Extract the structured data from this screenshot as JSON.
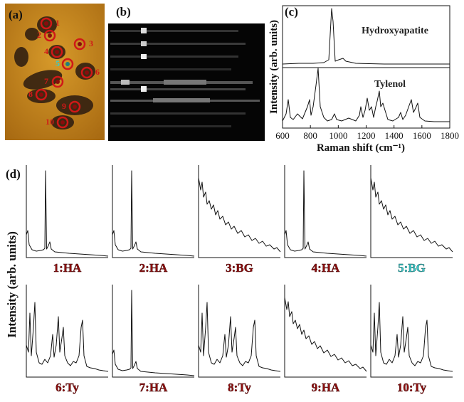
{
  "panel_a": {
    "label": "(a)",
    "markers": [
      "1",
      "2",
      "3",
      "4",
      "5",
      "6",
      "7",
      "8",
      "9",
      "10"
    ]
  },
  "panel_b": {
    "label": "(b)"
  },
  "panel_c": {
    "label": "(c)",
    "y_label": "Intensity (arb. units)",
    "x_label": "Raman shift (cm⁻¹)",
    "xlim": [
      600,
      1800
    ],
    "xticks": [
      600,
      800,
      1000,
      1200,
      1400,
      1600,
      1800
    ],
    "annotations": [
      "Hydroxyapatite",
      "Tylenol"
    ]
  },
  "panel_d": {
    "label": "(d)",
    "y_label": "Intensity (arb. units)",
    "panels": [
      "1:HA",
      "2:HA",
      "3:BG",
      "4:HA",
      "5:BG",
      "6:Ty",
      "7:HA",
      "8:Ty",
      "9:HA",
      "10:Ty"
    ]
  }
}
